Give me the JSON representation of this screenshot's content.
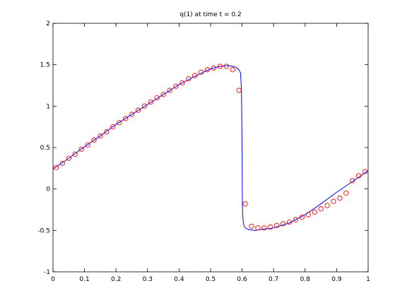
{
  "chart_data": {
    "type": "line",
    "title": "q(1)   at time t = 0.2",
    "xlabel": "",
    "ylabel": "",
    "xlim": [
      0,
      1
    ],
    "ylim": [
      -1,
      2
    ],
    "x_ticks": [
      "0",
      "0.1",
      "0.2",
      "0.3",
      "0.4",
      "0.5",
      "0.6",
      "0.7",
      "0.8",
      "0.9",
      "1"
    ],
    "y_ticks": [
      "-1",
      "-0.5",
      "0",
      "0.5",
      "1",
      "1.5",
      "2"
    ],
    "grid": false,
    "legend": "none",
    "series": [
      {
        "style": "solid line",
        "color": "#0000ff",
        "x": [
          0.0,
          0.05,
          0.1,
          0.15,
          0.2,
          0.25,
          0.3,
          0.35,
          0.4,
          0.45,
          0.5,
          0.53,
          0.56,
          0.58,
          0.59,
          0.595,
          0.598,
          0.6,
          0.601,
          0.603,
          0.606,
          0.61,
          0.62,
          0.64,
          0.66,
          0.7,
          0.75,
          0.8,
          0.85,
          0.9,
          0.95,
          1.0
        ],
        "y": [
          0.24,
          0.37,
          0.51,
          0.64,
          0.78,
          0.9,
          1.02,
          1.14,
          1.26,
          1.36,
          1.45,
          1.48,
          1.49,
          1.47,
          1.44,
          1.4,
          1.2,
          0.5,
          -0.2,
          -0.38,
          -0.44,
          -0.47,
          -0.49,
          -0.5,
          -0.49,
          -0.47,
          -0.41,
          -0.31,
          -0.18,
          -0.04,
          0.09,
          0.22
        ]
      },
      {
        "style": "circle markers",
        "color": "#ff0000",
        "x": [
          0.01,
          0.03,
          0.05,
          0.07,
          0.09,
          0.11,
          0.13,
          0.15,
          0.17,
          0.19,
          0.21,
          0.23,
          0.25,
          0.27,
          0.29,
          0.31,
          0.33,
          0.35,
          0.37,
          0.39,
          0.41,
          0.43,
          0.45,
          0.47,
          0.49,
          0.51,
          0.53,
          0.55,
          0.57,
          0.59,
          0.61,
          0.63,
          0.65,
          0.67,
          0.69,
          0.71,
          0.73,
          0.75,
          0.77,
          0.79,
          0.81,
          0.83,
          0.85,
          0.87,
          0.89,
          0.91,
          0.93,
          0.95,
          0.97,
          0.99
        ],
        "y": [
          0.26,
          0.31,
          0.37,
          0.42,
          0.48,
          0.53,
          0.59,
          0.64,
          0.69,
          0.75,
          0.8,
          0.85,
          0.9,
          0.95,
          1.0,
          1.05,
          1.1,
          1.14,
          1.19,
          1.24,
          1.28,
          1.33,
          1.37,
          1.41,
          1.44,
          1.46,
          1.48,
          1.48,
          1.44,
          1.19,
          -0.18,
          -0.45,
          -0.47,
          -0.47,
          -0.46,
          -0.44,
          -0.42,
          -0.4,
          -0.37,
          -0.34,
          -0.31,
          -0.28,
          -0.24,
          -0.2,
          -0.15,
          -0.11,
          -0.05,
          0.1,
          0.16,
          0.21
        ]
      }
    ]
  }
}
